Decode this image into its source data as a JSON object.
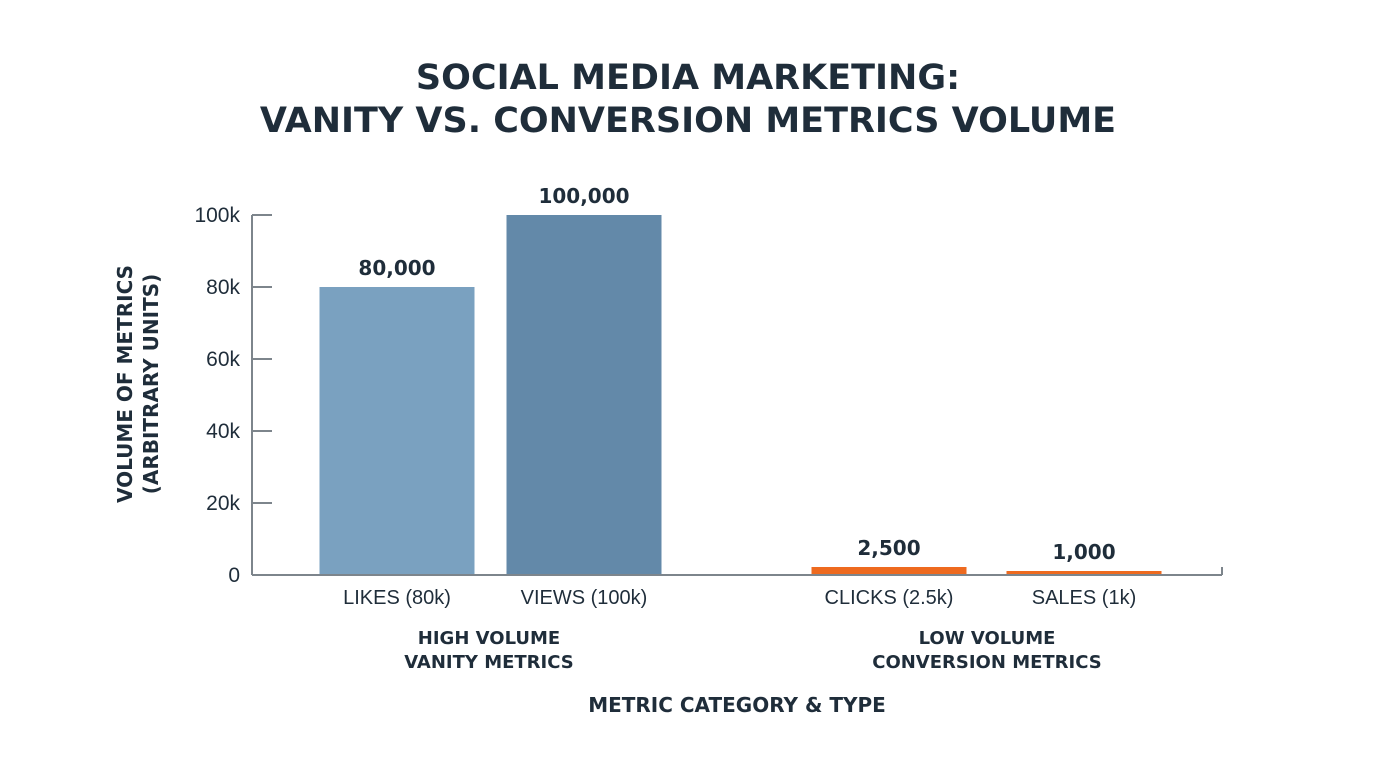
{
  "chart_data": {
    "type": "bar",
    "title_lines": [
      "SOCIAL MEDIA MARKETING:",
      "VANITY VS. CONVERSION METRICS VOLUME"
    ],
    "xlabel": "METRIC CATEGORY & TYPE",
    "ylabel_lines": [
      "VOLUME OF METRICS",
      "(ARBITRARY UNITS)"
    ],
    "ylim": [
      0,
      100000
    ],
    "y_ticks": [
      {
        "value": 0,
        "label": "0"
      },
      {
        "value": 20000,
        "label": "20k"
      },
      {
        "value": 40000,
        "label": "40k"
      },
      {
        "value": 60000,
        "label": "60k"
      },
      {
        "value": 80000,
        "label": "80k"
      },
      {
        "value": 100000,
        "label": "100k"
      }
    ],
    "grid": false,
    "legend": "none",
    "categories": [
      "LIKES (80k)",
      "VIEWS (100k)",
      "CLICKS (2.5k)",
      "SALES (1k)"
    ],
    "values": [
      80000,
      100000,
      2500,
      1000
    ],
    "value_labels": [
      "80,000",
      "100,000",
      "2,500",
      "1,000"
    ],
    "bar_colors": [
      "#7aa1c0",
      "#6389a9",
      "#ee6a1f",
      "#ee6a1f"
    ],
    "groups": [
      {
        "label_lines": [
          "HIGH VOLUME",
          "VANITY METRICS"
        ],
        "categories": [
          0,
          1
        ]
      },
      {
        "label_lines": [
          "LOW VOLUME",
          "CONVERSION METRICS"
        ],
        "categories": [
          2,
          3
        ]
      }
    ]
  }
}
